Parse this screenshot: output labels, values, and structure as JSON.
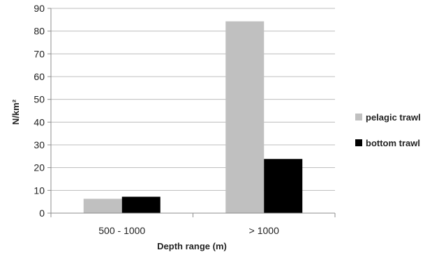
{
  "chart_data": {
    "type": "bar",
    "categories": [
      "500 - 1000",
      "> 1000"
    ],
    "series": [
      {
        "name": "pelagic trawl",
        "values": [
          6.3,
          84.3
        ],
        "color": "#c0c0c0"
      },
      {
        "name": "bottom trawl",
        "values": [
          7.2,
          23.8
        ],
        "color": "#000000"
      }
    ],
    "xlabel": "Depth range (m)",
    "ylabel": "N/km²",
    "ylim": [
      0,
      90
    ],
    "yticks": [
      0,
      10,
      20,
      30,
      40,
      50,
      60,
      70,
      80,
      90
    ],
    "grid": true,
    "legend_position": "right"
  }
}
